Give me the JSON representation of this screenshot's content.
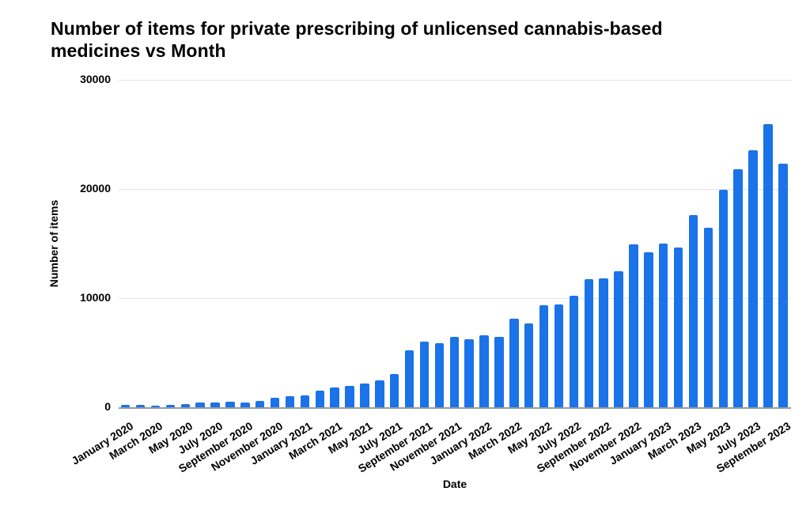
{
  "page": {
    "background": "#ffffff"
  },
  "chart_data": {
    "type": "bar",
    "title": "Number of items for private prescribing of unlicensed cannabis-based medicines vs Month",
    "title_lines": [
      "Number of items for private prescribing of unlicensed cannabis-based",
      "medicines vs Month"
    ],
    "xlabel": "Date",
    "ylabel": "Number of items",
    "ylim": [
      0,
      30000
    ],
    "yticks": [
      0,
      10000,
      20000,
      30000
    ],
    "ytick_labels": [
      "0",
      "10000",
      "20000",
      "30000"
    ],
    "x_label_step": 2,
    "bar_color": "#1a73e8",
    "gridline_color": "#e3e3e3",
    "axis_line_color": "#9a9a9a",
    "grid": true,
    "legend": "none",
    "categories": [
      "January 2020",
      "February 2020",
      "March 2020",
      "April 2020",
      "May 2020",
      "June 2020",
      "July 2020",
      "August 2020",
      "September 2020",
      "October 2020",
      "November 2020",
      "December 2020",
      "January 2021",
      "February 2021",
      "March 2021",
      "April 2021",
      "May 2021",
      "June 2021",
      "July 2021",
      "August 2021",
      "September 2021",
      "October 2021",
      "November 2021",
      "December 2021",
      "January 2022",
      "February 2022",
      "March 2022",
      "April 2022",
      "May 2022",
      "June 2022",
      "July 2022",
      "August 2022",
      "September 2022",
      "October 2022",
      "November 2022",
      "December 2022",
      "January 2023",
      "February 2023",
      "March 2023",
      "April 2023",
      "May 2023",
      "June 2023",
      "July 2023",
      "August 2023",
      "September 2023"
    ],
    "values": [
      200,
      200,
      170,
      210,
      270,
      420,
      400,
      480,
      460,
      600,
      840,
      980,
      1080,
      1490,
      1820,
      1930,
      2200,
      2450,
      3010,
      5200,
      5980,
      5900,
      6430,
      6200,
      6630,
      6420,
      8150,
      7670,
      9370,
      9420,
      10220,
      11750,
      11840,
      12500,
      14900,
      14230,
      15020,
      14660,
      17630,
      16480,
      19900,
      21800,
      23560,
      25940,
      22300
    ]
  }
}
